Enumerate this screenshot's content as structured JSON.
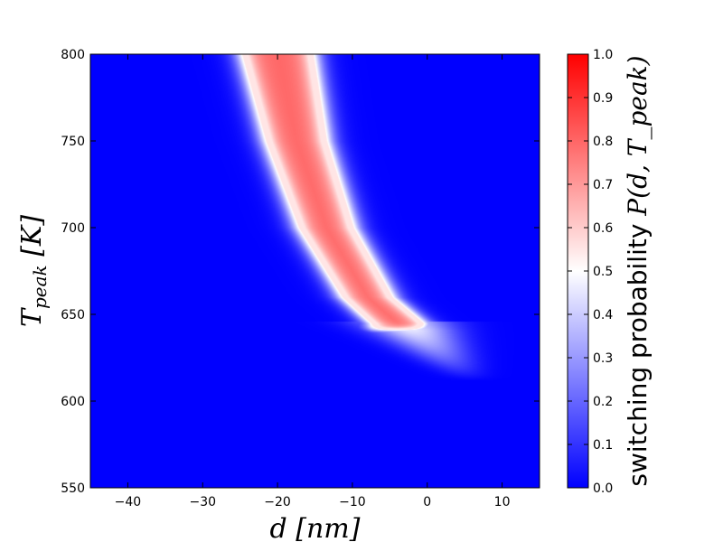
{
  "chart_data": {
    "type": "heatmap",
    "title": "",
    "xlabel": "d [nm]",
    "ylabel": "T_peak [K]",
    "xlim": [
      -45,
      15
    ],
    "ylim": [
      550,
      800
    ],
    "x_ticks": [
      -40,
      -30,
      -20,
      -10,
      0,
      10
    ],
    "y_ticks": [
      550,
      600,
      650,
      700,
      750,
      800
    ],
    "colorbar": {
      "label_text": "switching probability",
      "label_math": "P(d, T_peak)",
      "range": [
        0.0,
        1.0
      ],
      "ticks": [
        0.0,
        0.1,
        0.2,
        0.3,
        0.4,
        0.5,
        0.6,
        0.7,
        0.8,
        0.9,
        1.0
      ],
      "colormap": "bwr",
      "colors": {
        "low": "#0000ff",
        "mid": "#ffffff",
        "high": "#ff0000"
      }
    },
    "band": {
      "description_values_are_data_units": true,
      "plateau_value": 0.8,
      "background_value": 0.0,
      "center_line": [
        {
          "T": 800,
          "d": -20.0
        },
        {
          "T": 750,
          "d": -17.5
        },
        {
          "T": 700,
          "d": -13.5
        },
        {
          "T": 660,
          "d": -8.0
        },
        {
          "T": 645,
          "d": -4.0
        }
      ],
      "half_width": [
        {
          "T": 800,
          "d": 4.7
        },
        {
          "T": 750,
          "d": 4.0
        },
        {
          "T": 700,
          "d": 3.6
        },
        {
          "T": 660,
          "d": 3.3
        },
        {
          "T": 645,
          "d": 3.5
        }
      ],
      "lower_T_edge": 641,
      "tail_end": {
        "T": 612,
        "d": 8.0
      }
    }
  }
}
